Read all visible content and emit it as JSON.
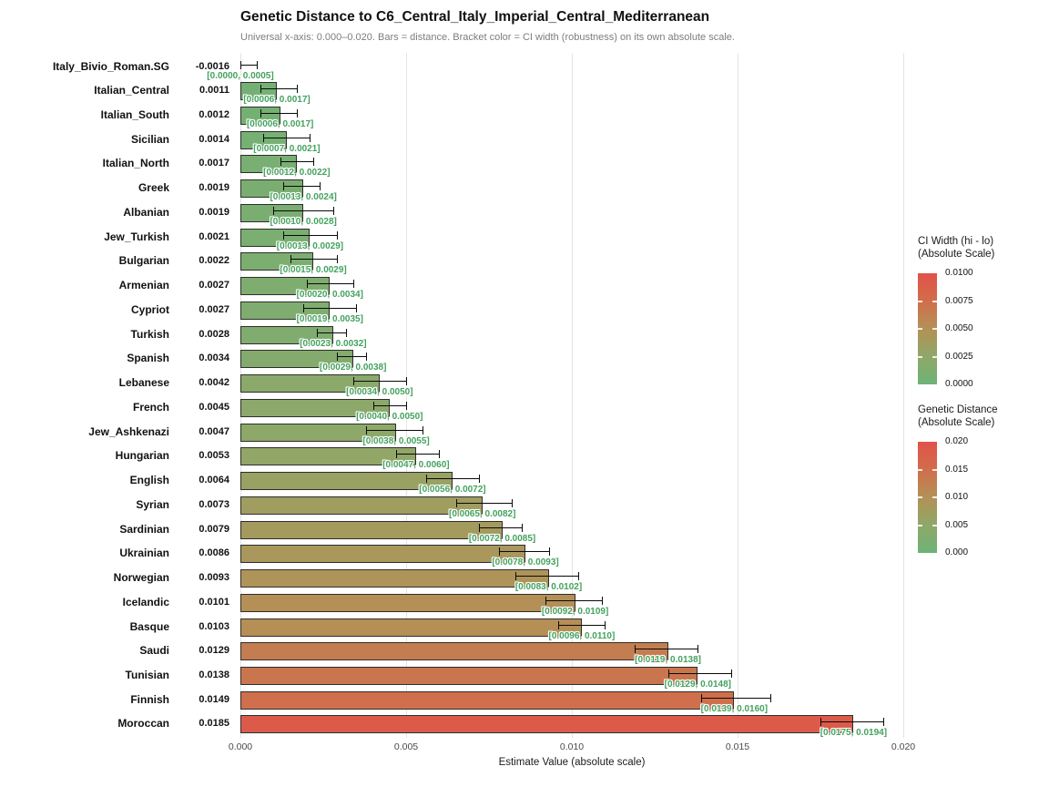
{
  "title": "Genetic Distance to C6_Central_Italy_Imperial_Central_Mediterranean",
  "subtitle": "Universal x-axis: 0.000–0.020. Bars = distance. Bracket color = CI width (robustness) on its own absolute scale.",
  "chart_data": {
    "type": "bar",
    "orientation": "horizontal",
    "xlabel": "Estimate Value (absolute scale)",
    "xlim": [
      0.0,
      0.02
    ],
    "x_ticks": [
      {
        "value": 0.0,
        "label": "0.000"
      },
      {
        "value": 0.005,
        "label": "0.005"
      },
      {
        "value": 0.01,
        "label": "0.010"
      },
      {
        "value": 0.015,
        "label": "0.015"
      },
      {
        "value": 0.02,
        "label": "0.020"
      }
    ],
    "grid": "vertical-major-only",
    "rows": [
      {
        "label": "Italy_Bivio_Roman.SG",
        "value": -0.0016,
        "value_label": "-0.0016",
        "ci_lo": 0.0,
        "ci_hi": 0.0005,
        "ci_label": "[0.0000, 0.0005]"
      },
      {
        "label": "Italian_Central",
        "value": 0.0011,
        "value_label": "0.0011",
        "ci_lo": 0.0006,
        "ci_hi": 0.0017,
        "ci_label": "[0.0006, 0.0017]"
      },
      {
        "label": "Italian_South",
        "value": 0.0012,
        "value_label": "0.0012",
        "ci_lo": 0.0006,
        "ci_hi": 0.0017,
        "ci_label": "[0.0006, 0.0017]"
      },
      {
        "label": "Sicilian",
        "value": 0.0014,
        "value_label": "0.0014",
        "ci_lo": 0.0007,
        "ci_hi": 0.0021,
        "ci_label": "[0.0007, 0.0021]"
      },
      {
        "label": "Italian_North",
        "value": 0.0017,
        "value_label": "0.0017",
        "ci_lo": 0.0012,
        "ci_hi": 0.0022,
        "ci_label": "[0.0012, 0.0022]"
      },
      {
        "label": "Greek",
        "value": 0.0019,
        "value_label": "0.0019",
        "ci_lo": 0.0013,
        "ci_hi": 0.0024,
        "ci_label": "[0.0013, 0.0024]"
      },
      {
        "label": "Albanian",
        "value": 0.0019,
        "value_label": "0.0019",
        "ci_lo": 0.001,
        "ci_hi": 0.0028,
        "ci_label": "[0.0010, 0.0028]"
      },
      {
        "label": "Jew_Turkish",
        "value": 0.0021,
        "value_label": "0.0021",
        "ci_lo": 0.0013,
        "ci_hi": 0.0029,
        "ci_label": "[0.0013, 0.0029]"
      },
      {
        "label": "Bulgarian",
        "value": 0.0022,
        "value_label": "0.0022",
        "ci_lo": 0.0015,
        "ci_hi": 0.0029,
        "ci_label": "[0.0015, 0.0029]"
      },
      {
        "label": "Armenian",
        "value": 0.0027,
        "value_label": "0.0027",
        "ci_lo": 0.002,
        "ci_hi": 0.0034,
        "ci_label": "[0.0020, 0.0034]"
      },
      {
        "label": "Cypriot",
        "value": 0.0027,
        "value_label": "0.0027",
        "ci_lo": 0.0019,
        "ci_hi": 0.0035,
        "ci_label": "[0.0019, 0.0035]"
      },
      {
        "label": "Turkish",
        "value": 0.0028,
        "value_label": "0.0028",
        "ci_lo": 0.0023,
        "ci_hi": 0.0032,
        "ci_label": "[0.0023, 0.0032]"
      },
      {
        "label": "Spanish",
        "value": 0.0034,
        "value_label": "0.0034",
        "ci_lo": 0.0029,
        "ci_hi": 0.0038,
        "ci_label": "[0.0029, 0.0038]"
      },
      {
        "label": "Lebanese",
        "value": 0.0042,
        "value_label": "0.0042",
        "ci_lo": 0.0034,
        "ci_hi": 0.005,
        "ci_label": "[0.0034, 0.0050]"
      },
      {
        "label": "French",
        "value": 0.0045,
        "value_label": "0.0045",
        "ci_lo": 0.004,
        "ci_hi": 0.005,
        "ci_label": "[0.0040, 0.0050]"
      },
      {
        "label": "Jew_Ashkenazi",
        "value": 0.0047,
        "value_label": "0.0047",
        "ci_lo": 0.0038,
        "ci_hi": 0.0055,
        "ci_label": "[0.0038, 0.0055]"
      },
      {
        "label": "Hungarian",
        "value": 0.0053,
        "value_label": "0.0053",
        "ci_lo": 0.0047,
        "ci_hi": 0.006,
        "ci_label": "[0.0047, 0.0060]"
      },
      {
        "label": "English",
        "value": 0.0064,
        "value_label": "0.0064",
        "ci_lo": 0.0056,
        "ci_hi": 0.0072,
        "ci_label": "[0.0056, 0.0072]"
      },
      {
        "label": "Syrian",
        "value": 0.0073,
        "value_label": "0.0073",
        "ci_lo": 0.0065,
        "ci_hi": 0.0082,
        "ci_label": "[0.0065, 0.0082]"
      },
      {
        "label": "Sardinian",
        "value": 0.0079,
        "value_label": "0.0079",
        "ci_lo": 0.0072,
        "ci_hi": 0.0085,
        "ci_label": "[0.0072, 0.0085]"
      },
      {
        "label": "Ukrainian",
        "value": 0.0086,
        "value_label": "0.0086",
        "ci_lo": 0.0078,
        "ci_hi": 0.0093,
        "ci_label": "[0.0078, 0.0093]"
      },
      {
        "label": "Norwegian",
        "value": 0.0093,
        "value_label": "0.0093",
        "ci_lo": 0.0083,
        "ci_hi": 0.0102,
        "ci_label": "[0.0083, 0.0102]"
      },
      {
        "label": "Icelandic",
        "value": 0.0101,
        "value_label": "0.0101",
        "ci_lo": 0.0092,
        "ci_hi": 0.0109,
        "ci_label": "[0.0092, 0.0109]"
      },
      {
        "label": "Basque",
        "value": 0.0103,
        "value_label": "0.0103",
        "ci_lo": 0.0096,
        "ci_hi": 0.011,
        "ci_label": "[0.0096, 0.0110]"
      },
      {
        "label": "Saudi",
        "value": 0.0129,
        "value_label": "0.0129",
        "ci_lo": 0.0119,
        "ci_hi": 0.0138,
        "ci_label": "[0.0119, 0.0138]"
      },
      {
        "label": "Tunisian",
        "value": 0.0138,
        "value_label": "0.0138",
        "ci_lo": 0.0129,
        "ci_hi": 0.0148,
        "ci_label": "[0.0129, 0.0148]"
      },
      {
        "label": "Finnish",
        "value": 0.0149,
        "value_label": "0.0149",
        "ci_lo": 0.0139,
        "ci_hi": 0.016,
        "ci_label": "[0.0139, 0.0160]"
      },
      {
        "label": "Moroccan",
        "value": 0.0185,
        "value_label": "0.0185",
        "ci_lo": 0.0175,
        "ci_hi": 0.0194,
        "ci_label": "[0.0175, 0.0194]"
      }
    ],
    "legends": [
      {
        "title_line1": "CI Width (hi - lo)",
        "title_line2": "(Absolute Scale)",
        "max": 0.01,
        "ticks": [
          {
            "f": 0.0,
            "label": "0.0100"
          },
          {
            "f": 0.25,
            "label": "0.0075"
          },
          {
            "f": 0.5,
            "label": "0.0050"
          },
          {
            "f": 0.75,
            "label": "0.0025"
          },
          {
            "f": 1.0,
            "label": "0.0000"
          }
        ]
      },
      {
        "title_line1": "Genetic Distance",
        "title_line2": "(Absolute Scale)",
        "max": 0.02,
        "ticks": [
          {
            "f": 0.0,
            "label": "0.020"
          },
          {
            "f": 0.25,
            "label": "0.015"
          },
          {
            "f": 0.5,
            "label": "0.010"
          },
          {
            "f": 0.75,
            "label": "0.005"
          },
          {
            "f": 1.0,
            "label": "0.000"
          }
        ]
      }
    ],
    "colors": {
      "palette_stops": [
        "#6db377",
        "#8fa768",
        "#b39156",
        "#d06e4b",
        "#e1524a"
      ],
      "ci_text_green": "#44a25f",
      "errorbar": "#0a0a0a",
      "grid": "#e4e4e4",
      "bar_border": "#2e2e2e"
    }
  }
}
